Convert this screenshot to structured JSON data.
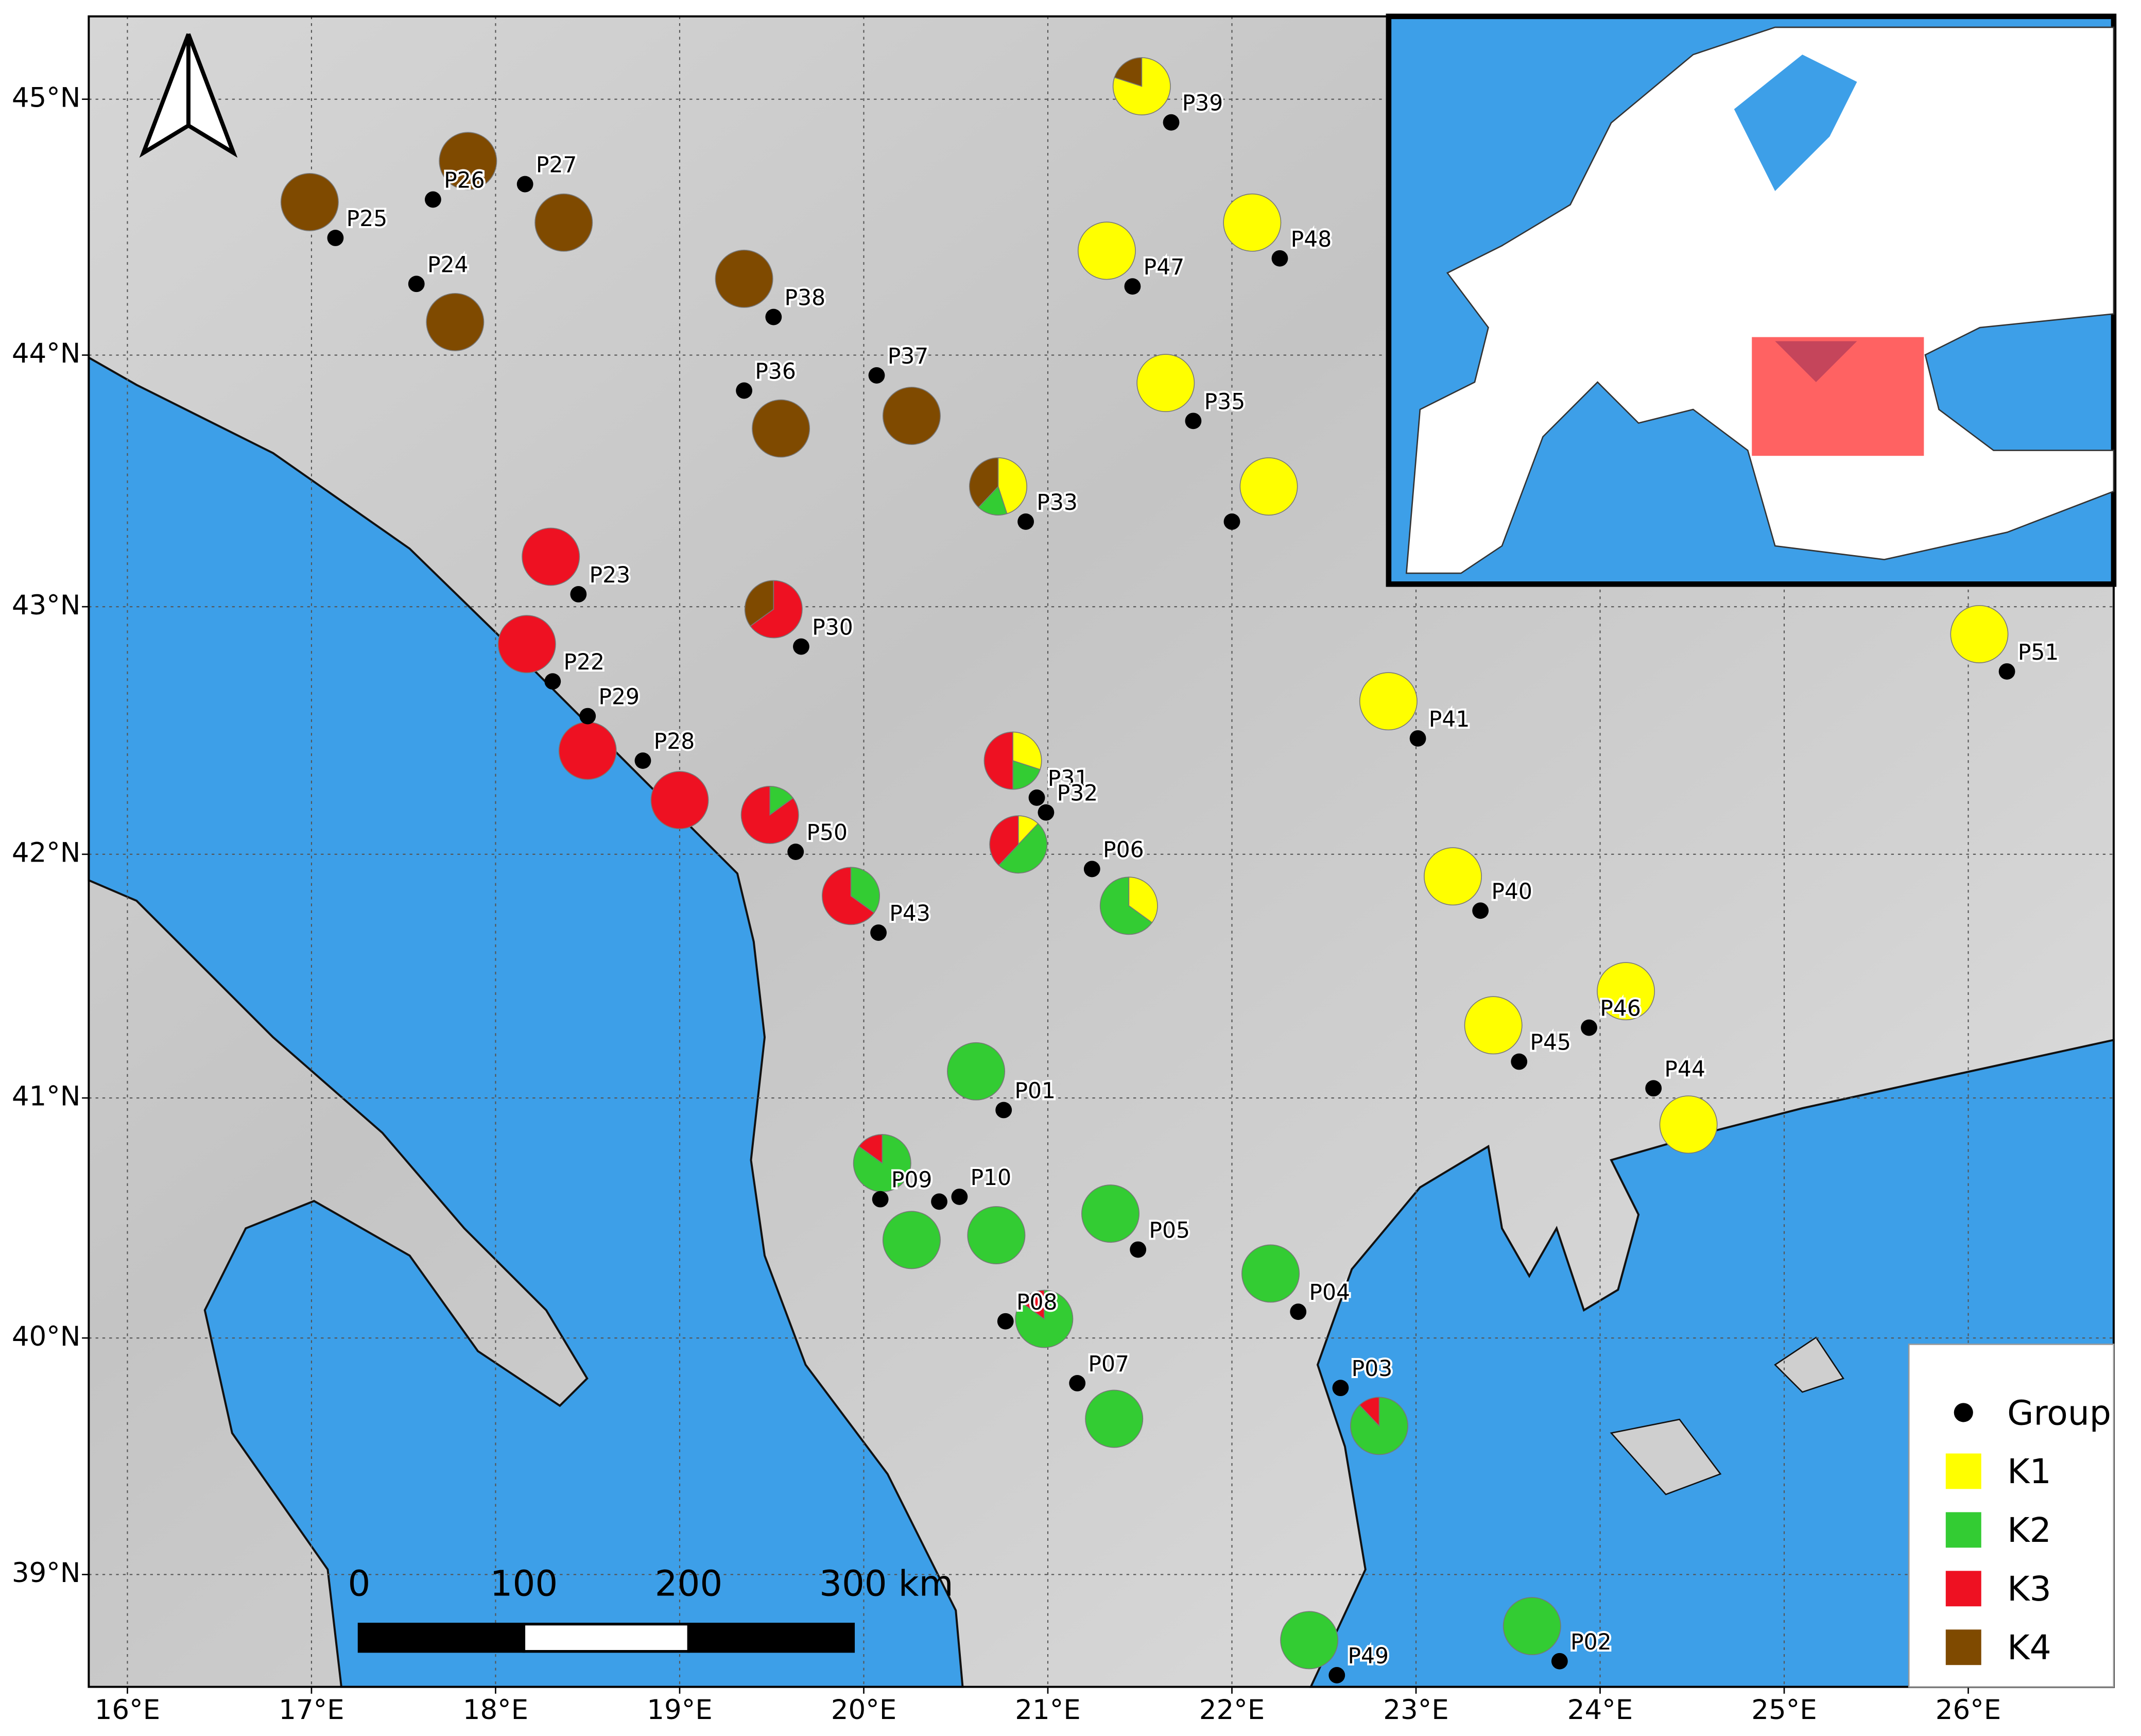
{
  "map": {
    "xlim": [
      15.79,
      26.79
    ],
    "ylim": [
      38.52,
      45.32
    ],
    "xticks": [
      {
        "value": 16,
        "label": "16°E"
      },
      {
        "value": 17,
        "label": "17°E"
      },
      {
        "value": 18,
        "label": "18°E"
      },
      {
        "value": 19,
        "label": "19°E"
      },
      {
        "value": 20,
        "label": "20°E"
      },
      {
        "value": 21,
        "label": "21°E"
      },
      {
        "value": 22,
        "label": "22°E"
      },
      {
        "value": 23,
        "label": "23°E"
      },
      {
        "value": 24,
        "label": "24°E"
      },
      {
        "value": 25,
        "label": "25°E"
      },
      {
        "value": 26,
        "label": "26°E"
      }
    ],
    "yticks": [
      {
        "value": 39,
        "label": "39°N"
      },
      {
        "value": 40,
        "label": "40°N"
      },
      {
        "value": 41,
        "label": "41°N"
      },
      {
        "value": 42,
        "label": "42°N"
      },
      {
        "value": 43,
        "label": "43°N"
      },
      {
        "value": 44,
        "label": "44°N"
      },
      {
        "value": 45,
        "label": "45°N"
      }
    ],
    "grid": true
  },
  "populations": [
    {
      "label": "P39",
      "lon": 21.67,
      "lat": 44.91,
      "pie_lon": 21.51,
      "pie_lat": 45.05,
      "composition": [
        0.8,
        0,
        0,
        0.2
      ]
    },
    {
      "label": "P26",
      "lon": 17.66,
      "lat": 44.61,
      "pie_lon": 17.85,
      "pie_lat": 44.76,
      "composition": [
        0,
        0,
        0,
        1
      ]
    },
    {
      "label": "P27",
      "lon": 18.16,
      "lat": 44.67,
      "pie_lon": 18.37,
      "pie_lat": 44.52,
      "composition": [
        0,
        0,
        0,
        1
      ]
    },
    {
      "label": "P25",
      "lon": 17.13,
      "lat": 44.46,
      "pie_lon": 16.99,
      "pie_lat": 44.6,
      "composition": [
        0,
        0,
        0,
        1
      ]
    },
    {
      "label": "P24",
      "lon": 17.57,
      "lat": 44.28,
      "pie_lon": 17.78,
      "pie_lat": 44.13,
      "composition": [
        0,
        0,
        0,
        1
      ]
    },
    {
      "label": "P38",
      "lon": 19.51,
      "lat": 44.15,
      "pie_lon": 19.35,
      "pie_lat": 44.3,
      "composition": [
        0,
        0,
        0,
        1
      ]
    },
    {
      "label": "P36",
      "lon": 19.35,
      "lat": 43.86,
      "pie_lon": 19.55,
      "pie_lat": 43.71,
      "composition": [
        0,
        0,
        0,
        1
      ]
    },
    {
      "label": "P37",
      "lon": 20.07,
      "lat": 43.92,
      "pie_lon": 20.26,
      "pie_lat": 43.76,
      "composition": [
        0,
        0,
        0,
        1
      ]
    },
    {
      "label": "P47",
      "lon": 21.46,
      "lat": 44.27,
      "pie_lon": 21.32,
      "pie_lat": 44.41,
      "composition": [
        1,
        0,
        0,
        0
      ]
    },
    {
      "label": "P48",
      "lon": 22.26,
      "lat": 44.38,
      "pie_lon": 22.11,
      "pie_lat": 44.52,
      "composition": [
        1,
        0,
        0,
        0
      ]
    },
    {
      "label": "P35",
      "lon": 21.79,
      "lat": 43.74,
      "pie_lon": 21.64,
      "pie_lat": 43.89,
      "composition": [
        1,
        0,
        0,
        0
      ]
    },
    {
      "lon": 22.0,
      "lat": 43.34,
      "pie_lon": 22.2,
      "pie_lat": 43.48,
      "composition": [
        1,
        0,
        0,
        0
      ]
    },
    {
      "label": "P33",
      "lon": 20.88,
      "lat": 43.34,
      "pie_lon": 20.73,
      "pie_lat": 43.48,
      "composition": [
        0.45,
        0.17,
        0,
        0.38
      ]
    },
    {
      "label": "P23",
      "lon": 18.45,
      "lat": 43.05,
      "pie_lon": 18.3,
      "pie_lat": 43.2,
      "composition": [
        0,
        0,
        1,
        0
      ]
    },
    {
      "label": "P22",
      "lon": 18.31,
      "lat": 42.7,
      "pie_lon": 18.17,
      "pie_lat": 42.85,
      "composition": [
        0,
        0,
        1,
        0
      ]
    },
    {
      "label": "P30",
      "lon": 19.66,
      "lat": 42.84,
      "pie_lon": 19.51,
      "pie_lat": 42.99,
      "composition": [
        0,
        0,
        0.65,
        0.35
      ]
    },
    {
      "label": "P29",
      "lon": 18.5,
      "lat": 42.56,
      "pie_lon": 18.5,
      "pie_lat": 42.42,
      "composition": [
        0,
        0,
        1,
        0
      ]
    },
    {
      "label": "P28",
      "lon": 18.8,
      "lat": 42.38,
      "pie_lon": 19.0,
      "pie_lat": 42.22,
      "composition": [
        0,
        0,
        1,
        0
      ]
    },
    {
      "label": "P50",
      "lon": 19.63,
      "lat": 42.01,
      "pie_lon": 19.49,
      "pie_lat": 42.16,
      "composition": [
        0,
        0.15,
        0.85,
        0
      ]
    },
    {
      "label": "P43",
      "lon": 20.08,
      "lat": 41.68,
      "pie_lon": 19.93,
      "pie_lat": 41.83,
      "composition": [
        0,
        0.35,
        0.65,
        0
      ]
    },
    {
      "label": "P31",
      "lon": 20.94,
      "lat": 42.23,
      "pie_lon": 20.81,
      "pie_lat": 42.38,
      "composition": [
        0.3,
        0.2,
        0.5,
        0
      ]
    },
    {
      "label": "P32",
      "lon": 20.99,
      "lat": 42.17,
      "pie_lon": 20.84,
      "pie_lat": 42.04,
      "composition": [
        0.12,
        0.5,
        0.38,
        0
      ]
    },
    {
      "label": "P06",
      "lon": 21.24,
      "lat": 41.94,
      "pie_lon": 21.44,
      "pie_lat": 41.79,
      "composition": [
        0.35,
        0.65,
        0,
        0
      ]
    },
    {
      "label": "P41",
      "lon": 23.01,
      "lat": 42.47,
      "pie_lon": 22.85,
      "pie_lat": 42.62,
      "composition": [
        1,
        0,
        0,
        0
      ]
    },
    {
      "label": "P51",
      "lon": 26.21,
      "lat": 42.74,
      "pie_lon": 26.06,
      "pie_lat": 42.89,
      "composition": [
        1,
        0,
        0,
        0
      ]
    },
    {
      "label": "P40",
      "lon": 23.35,
      "lat": 41.77,
      "pie_lon": 23.2,
      "pie_lat": 41.91,
      "composition": [
        1,
        0,
        0,
        0
      ]
    },
    {
      "label": "P46",
      "lon": 23.94,
      "lat": 41.29,
      "pie_lon": 24.14,
      "pie_lat": 41.44,
      "composition": [
        1,
        0,
        0,
        0
      ]
    },
    {
      "label": "P45",
      "lon": 23.56,
      "lat": 41.15,
      "pie_lon": 23.42,
      "pie_lat": 41.3,
      "composition": [
        1,
        0,
        0,
        0
      ]
    },
    {
      "label": "P44",
      "lon": 24.29,
      "lat": 41.04,
      "pie_lon": 24.48,
      "pie_lat": 40.89,
      "composition": [
        1,
        0,
        0,
        0
      ]
    },
    {
      "label": "P01",
      "lon": 20.76,
      "lat": 40.95,
      "pie_lon": 20.61,
      "pie_lat": 41.11,
      "composition": [
        0,
        1,
        0,
        0
      ]
    },
    {
      "label": "P09",
      "lon": 20.09,
      "lat": 40.58,
      "pie_lon": 20.1,
      "pie_lat": 40.73,
      "composition": [
        0,
        0.85,
        0.15,
        0
      ]
    },
    {
      "lon": 20.41,
      "lat": 40.57,
      "pie_lon": 20.26,
      "pie_lat": 40.41,
      "composition": [
        0,
        1,
        0,
        0
      ]
    },
    {
      "label": "P10",
      "lon": 20.52,
      "lat": 40.59,
      "pie_lon": 20.72,
      "pie_lat": 40.43,
      "composition": [
        0,
        1,
        0,
        0
      ]
    },
    {
      "label": "P05",
      "lon": 21.49,
      "lat": 40.37,
      "pie_lon": 21.34,
      "pie_lat": 40.52,
      "composition": [
        0,
        1,
        0,
        0
      ]
    },
    {
      "label": "P04",
      "lon": 22.36,
      "lat": 40.11,
      "pie_lon": 22.21,
      "pie_lat": 40.27,
      "composition": [
        0,
        1,
        0,
        0
      ]
    },
    {
      "label": "P08",
      "lon": 20.77,
      "lat": 40.07,
      "pie_lon": 20.98,
      "pie_lat": 40.08,
      "composition": [
        0,
        0.85,
        0.15,
        0
      ]
    },
    {
      "label": "P07",
      "lon": 21.16,
      "lat": 39.81,
      "pie_lon": 21.36,
      "pie_lat": 39.66,
      "composition": [
        0,
        1,
        0,
        0
      ]
    },
    {
      "label": "P03",
      "lon": 22.59,
      "lat": 39.79,
      "pie_lon": 22.8,
      "pie_lat": 39.63,
      "composition": [
        0,
        0.88,
        0.12,
        0
      ]
    },
    {
      "label": "P02",
      "lon": 23.78,
      "lat": 38.63,
      "pie_lon": 23.63,
      "pie_lat": 38.78,
      "composition": [
        0,
        1,
        0,
        0
      ]
    },
    {
      "label": "P49",
      "lon": 22.57,
      "lat": 38.57,
      "pie_lon": 22.42,
      "pie_lat": 38.72,
      "composition": [
        0,
        1,
        0,
        0
      ]
    }
  ],
  "legend": {
    "point_label": "Group",
    "clusters": [
      {
        "name": "K1",
        "color": "#ffff00"
      },
      {
        "name": "K2",
        "color": "#33cc33"
      },
      {
        "name": "K3",
        "color": "#ee1122"
      },
      {
        "name": "K4",
        "color": "#7f4a00"
      }
    ]
  },
  "scale_bar": {
    "ticks": [
      0,
      100,
      200,
      {
        "value": 300,
        "label": "300 km"
      }
    ]
  }
}
